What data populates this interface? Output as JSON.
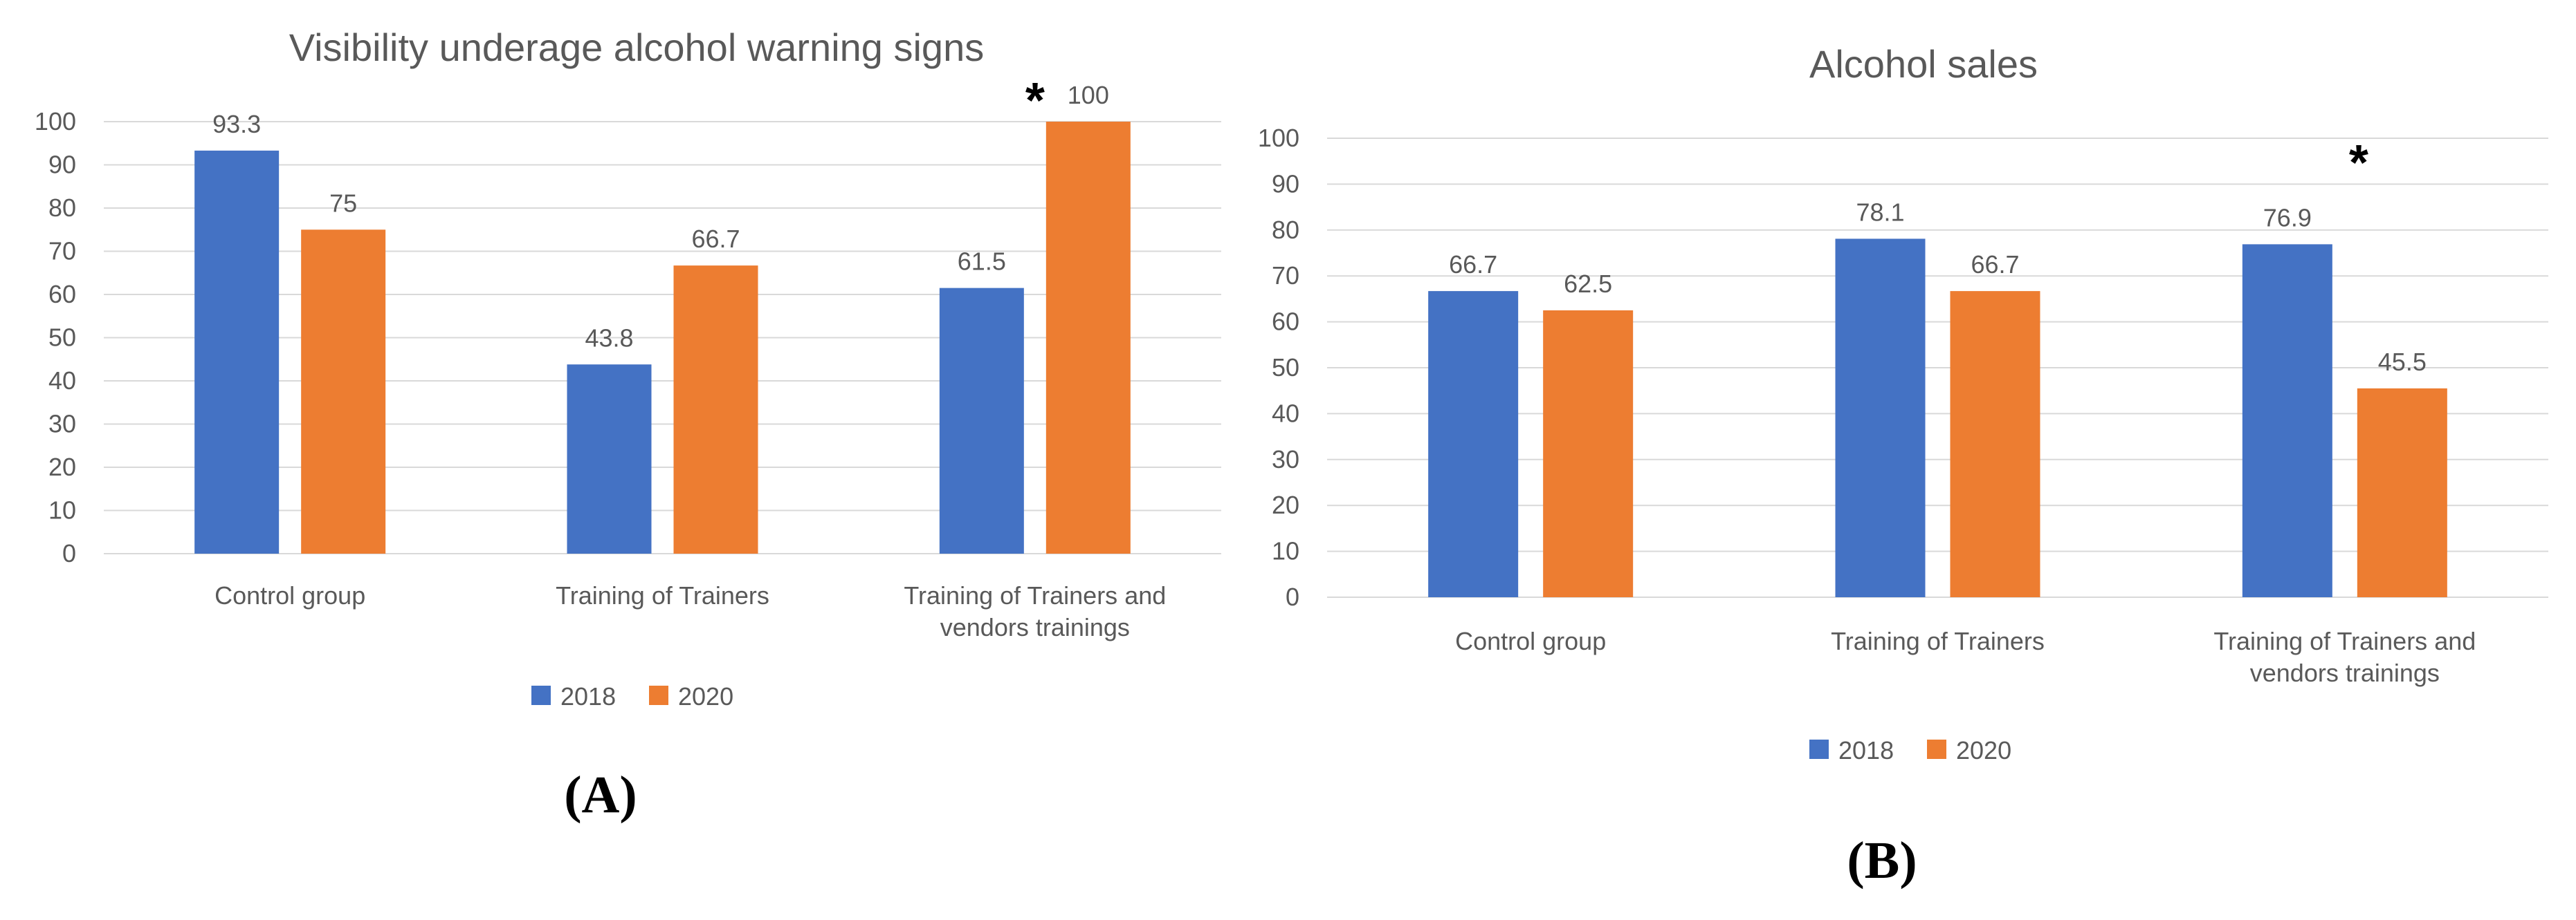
{
  "colors": {
    "2018": "#4472C4",
    "2020": "#ED7D31",
    "grid": "#D9D9D9",
    "text": "#595959"
  },
  "chart_data": [
    {
      "type": "bar",
      "panel_label": "(A)",
      "title": "Visibility underage alcohol warning signs",
      "categories": [
        [
          "Control group"
        ],
        [
          "Training of Trainers"
        ],
        [
          "Training of Trainers and",
          "vendors trainings"
        ]
      ],
      "series": [
        {
          "name": "2018",
          "values": [
            93.3,
            43.8,
            61.5
          ],
          "labels": [
            "93.3",
            "43.8",
            "61.5"
          ]
        },
        {
          "name": "2020",
          "values": [
            75,
            66.7,
            100
          ],
          "labels": [
            "75",
            "66.7",
            "100"
          ]
        }
      ],
      "ylim": [
        0,
        100
      ],
      "yticks": [
        0,
        10,
        20,
        30,
        40,
        50,
        60,
        70,
        80,
        90,
        100
      ],
      "xlabel": "",
      "ylabel": "",
      "grid": true,
      "legend": "bottom",
      "annotations": [
        {
          "text": "*",
          "category": 2
        }
      ]
    },
    {
      "type": "bar",
      "panel_label": "(B)",
      "title": "Alcohol sales",
      "categories": [
        [
          "Control group"
        ],
        [
          "Training of Trainers"
        ],
        [
          "Training of Trainers and",
          "vendors trainings"
        ]
      ],
      "series": [
        {
          "name": "2018",
          "values": [
            66.7,
            78.1,
            76.9
          ],
          "labels": [
            "66.7",
            "78.1",
            "76.9"
          ]
        },
        {
          "name": "2020",
          "values": [
            62.5,
            66.7,
            45.5
          ],
          "labels": [
            "62.5",
            "66.7",
            "45.5"
          ]
        }
      ],
      "ylim": [
        0,
        100
      ],
      "yticks": [
        0,
        10,
        20,
        30,
        40,
        50,
        60,
        70,
        80,
        90,
        100
      ],
      "xlabel": "",
      "ylabel": "",
      "grid": true,
      "legend": "bottom",
      "annotations": [
        {
          "text": "*",
          "category": 2
        }
      ]
    }
  ]
}
